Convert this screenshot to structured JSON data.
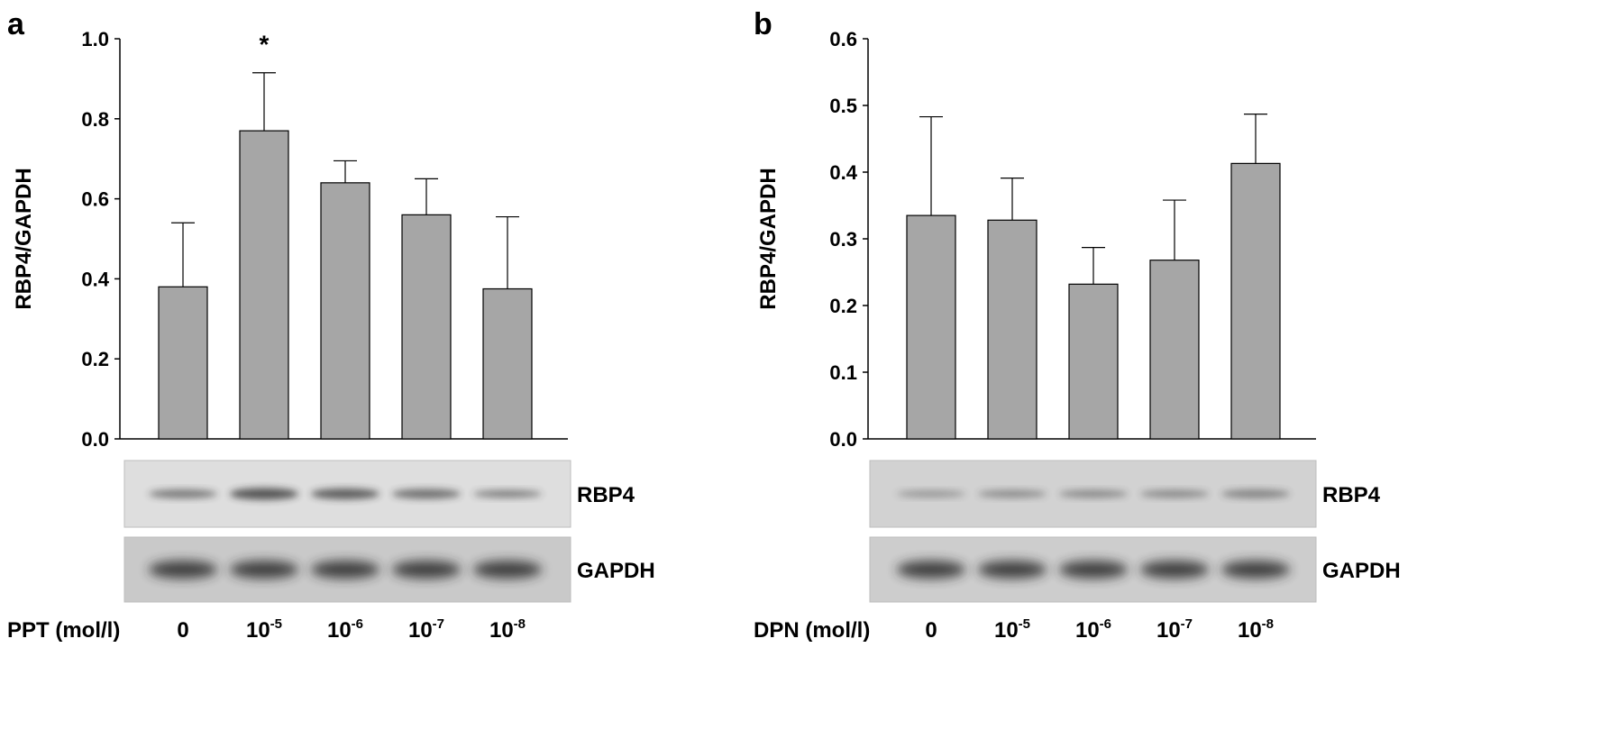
{
  "chart_data": [
    {
      "type": "bar",
      "panel_label": "a",
      "ylabel": "RBP4/GAPDH",
      "ylim": [
        0,
        1.0
      ],
      "yticks": [
        "0.0",
        "0.2",
        "0.4",
        "0.6",
        "0.8",
        "1.0"
      ],
      "ytick_values": [
        0,
        0.2,
        0.4,
        0.6,
        0.8,
        1.0
      ],
      "xlabel": "PPT (mol/l)",
      "categories": [
        {
          "base": "0",
          "exp": ""
        },
        {
          "base": "10",
          "exp": "-5"
        },
        {
          "base": "10",
          "exp": "-6"
        },
        {
          "base": "10",
          "exp": "-7"
        },
        {
          "base": "10",
          "exp": "-8"
        }
      ],
      "values": [
        0.38,
        0.77,
        0.64,
        0.56,
        0.375
      ],
      "error_upper": [
        0.54,
        0.915,
        0.695,
        0.65,
        0.555
      ],
      "annotations": [
        {
          "category_index": 1,
          "text": "*"
        }
      ],
      "blot_labels": [
        "RBP4",
        "GAPDH"
      ],
      "bar_color": "#a6a6a6"
    },
    {
      "type": "bar",
      "panel_label": "b",
      "ylabel": "RBP4/GAPDH",
      "ylim": [
        0,
        0.6
      ],
      "yticks": [
        "0.0",
        "0.1",
        "0.2",
        "0.3",
        "0.4",
        "0.5",
        "0.6"
      ],
      "ytick_values": [
        0,
        0.1,
        0.2,
        0.3,
        0.4,
        0.5,
        0.6
      ],
      "xlabel": "DPN (mol/l)",
      "categories": [
        {
          "base": "0",
          "exp": ""
        },
        {
          "base": "10",
          "exp": "-5"
        },
        {
          "base": "10",
          "exp": "-6"
        },
        {
          "base": "10",
          "exp": "-7"
        },
        {
          "base": "10",
          "exp": "-8"
        }
      ],
      "values": [
        0.335,
        0.328,
        0.232,
        0.268,
        0.413
      ],
      "error_upper": [
        0.483,
        0.391,
        0.287,
        0.358,
        0.487
      ],
      "annotations": [],
      "blot_labels": [
        "RBP4",
        "GAPDH"
      ],
      "bar_color": "#a6a6a6"
    }
  ]
}
